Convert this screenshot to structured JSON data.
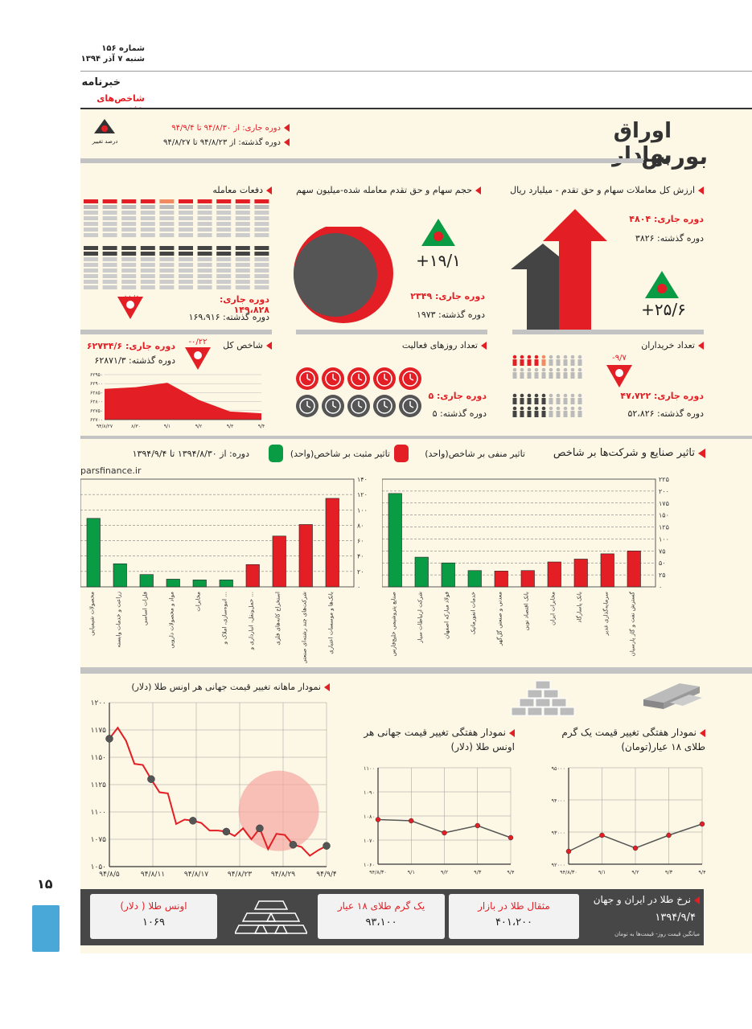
{
  "header": {
    "issue": "شماره ۱۵۶",
    "date": "شنبه ۷ آذر ۱۳۹۴",
    "section": "خبرنامه",
    "subsection": "شاخص‌های هفته"
  },
  "legend": {
    "current_period": "دوره جاری: از ۹۴/۸/۳۰ تا ۹۴/۹/۴",
    "previous_period": "دوره گذشته: از ۹۴/۸/۲۳ تا ۹۴/۸/۲۷",
    "percent_change": "درصد تغییر"
  },
  "main_title": {
    "word1": "اوراق بهادار",
    "word2": "بورس"
  },
  "value_traded": {
    "title": "ارزش کل معاملات سهام و حق تقدم - میلیارد ریال",
    "current": "دوره جاری: ۴۸۰۴",
    "previous": "دوره گذشته: ۳۸۲۶",
    "change": "+۲۵/۶"
  },
  "volume": {
    "title": "حجم سهام و حق تقدم معامله شده-میلیون سهم",
    "current": "دوره جاری: ۲۳۴۹",
    "previous": "دوره گذشته: ۱۹۷۳",
    "change": "+۱۹/۱"
  },
  "transactions": {
    "title": "دفعات معامله",
    "current": "دوره جاری: ۱۴۹،۸۲۸",
    "previous": "دوره گذشته: ۱۶۹،۹۱۶",
    "change": "-۱۱/۸"
  },
  "buyers": {
    "title": "تعداد خریداران",
    "current": "دوره جاری: ۴۷،۷۲۲",
    "previous": "دوره گذشته: ۵۲،۸۲۶",
    "change": "-۹/۷"
  },
  "active_days": {
    "title": "تعداد روزهای فعالیت",
    "current": "دوره جاری: ۵",
    "previous": "دوره گذشته: ۵"
  },
  "total_index": {
    "title": "شاخص کل",
    "current": "دوره جاری: ۶۲۷۳۴/۶",
    "previous": "دوره گذشته: ۶۲۸۷۱/۳",
    "change": "-۰/۲۲",
    "chart_data": {
      "type": "area",
      "x": [
        "۹۴/۸/۲۷",
        "۸/۳۰",
        "۹/۱",
        "۹/۲",
        "۹/۳",
        "۹/۴"
      ],
      "y_ticks": [
        "۶۲۷۰۰",
        "۶۲۷۵۰",
        "۶۲۸۰۰",
        "۶۲۸۵۰",
        "۶۲۹۰۰",
        "۶۲۹۵۰"
      ],
      "values": [
        62871,
        62880,
        62905,
        62810,
        62745,
        62735
      ],
      "ylim": [
        62700,
        62950
      ]
    }
  },
  "impact": {
    "title": "تاثیر صنایع و شرکت‌ها بر شاخص",
    "negative_label": "تاثیر منفی بر شاخص(واحد)",
    "positive_label": "تاثیر مثبت بر شاخص(واحد)",
    "period": "دوره: از ۱۳۹۴/۸/۳۰ تا ۱۳۹۴/۹/۴",
    "source": "parsfinance.ir",
    "colors": {
      "positive": "#0a9b45",
      "negative": "#e31e24"
    }
  },
  "chart_data": [
    {
      "type": "bar",
      "title": "صنایع",
      "categories": [
        "محصولات شیمیایی",
        "زراعت و خدمات وابسته",
        "فلزات اساسی",
        "مواد و محصولات دارویی",
        "مخابرات",
        "انبوه‌سازی، املاک و ...",
        "حمل‌ونقل، انبارداری و ...",
        "استخراج کانه‌های فلزی",
        "شرکت‌های چند رشته‌ای صنعتی",
        "بانک‌ها و موسسات اعتباری"
      ],
      "values": [
        89,
        30,
        16,
        10,
        9,
        9,
        29,
        66,
        81,
        115
      ],
      "signs": [
        "+",
        "+",
        "+",
        "+",
        "+",
        "+",
        "-",
        "-",
        "-",
        "-"
      ],
      "y_ticks": [
        "۰",
        "۲۰",
        "۴۰",
        "۶۰",
        "۸۰",
        "۱۰۰",
        "۱۲۰",
        "۱۴۰"
      ],
      "ylim": [
        0,
        140
      ]
    },
    {
      "type": "bar",
      "title": "شرکت‌ها",
      "categories": [
        "صنایع پتروشیمی خلیج‌فارس",
        "شرکت ارتباطات سیار",
        "فولاد مبارکه اصفهان",
        "خدمات انفورماتیک",
        "معدنی و صنعتی گل‌گهر",
        "بانک اقتصاد نوین",
        "مخابرات ایران",
        "بانک پاسارگاد",
        "سرمایه‌گذاری غدیر",
        "گسترش نفت و گاز پارسیان"
      ],
      "values": [
        195,
        62,
        50,
        34,
        33,
        34,
        52,
        58,
        69,
        75
      ],
      "signs": [
        "+",
        "+",
        "+",
        "+",
        "-",
        "-",
        "-",
        "-",
        "-",
        "-"
      ],
      "y_ticks": [
        "۰",
        "۲۵",
        "۵۰",
        "۷۵",
        "۱۰۰",
        "۱۲۵",
        "۱۵۰",
        "۱۷۵",
        "۲۰۰",
        "۲۲۵"
      ],
      "ylim": [
        0,
        225
      ]
    },
    {
      "type": "line",
      "title": "نمودار ماهانه تغییر قیمت جهانی هر اونس طلا (دلار)",
      "x_labels": [
        "۹۴/۸/۵",
        "۹۴/۸/۱۱",
        "۹۴/۸/۱۷",
        "۹۴/۸/۲۳",
        "۹۴/۸/۲۹",
        "۹۴/۹/۴"
      ],
      "y_ticks": [
        "۱۰۵۰",
        "۱۰۷۵",
        "۱۱۰۰",
        "۱۱۲۵",
        "۱۱۵۰",
        "۱۱۷۵",
        "۱۲۰۰"
      ],
      "values": [
        1167,
        1177,
        1165,
        1144,
        1143,
        1130,
        1118,
        1117,
        1089,
        1093,
        1092,
        1090,
        1083,
        1083,
        1082,
        1078,
        1085,
        1075,
        1085,
        1066,
        1080,
        1079,
        1070,
        1068,
        1060,
        1065,
        1069
      ],
      "markers": [
        0,
        5,
        10,
        14,
        18,
        22,
        26
      ],
      "ylim": [
        1050,
        1200
      ]
    },
    {
      "type": "line",
      "title": "نمودار هفتگی تغییر قیمت جهانی هر اونس طلا (دلار)",
      "x_labels": [
        "۹۴/۸/۳۰",
        "۹/۱",
        "۹/۲",
        "۹/۳",
        "۹/۴"
      ],
      "y_ticks": [
        "۱۰۶۰",
        "۱۰۷۰",
        "۱۰۸۰",
        "۱۰۹۰",
        "۱۱۰۰"
      ],
      "values": [
        1078.5,
        1078,
        1073,
        1076,
        1071
      ],
      "ylim": [
        1060,
        1100
      ]
    },
    {
      "type": "line",
      "title": "نمودار هفتگی تغییر قیمت یک گرم طلای ۱۸ عیار (تومان)",
      "x_labels": [
        "۹۴/۸/۳۰",
        "۹/۱",
        "۹/۲",
        "۹/۳",
        "۹/۴"
      ],
      "y_ticks": [
        "۹۲۰۰۰",
        "۹۳۰۰۰",
        "۹۴۰۰۰",
        "۹۵۰۰۰"
      ],
      "values": [
        92400,
        92900,
        92500,
        92900,
        93250
      ],
      "ylim": [
        92000,
        95000
      ]
    }
  ],
  "gold": {
    "monthly_title": "نمودار ماهانه تغییر قیمت جهانی هر اونس طلا (دلار)",
    "weekly_ounce_title_1": "نمودار هفتگی تغییر قیمت جهانی هر",
    "weekly_ounce_title_2": "اونس طلا (دلار)",
    "weekly_gram_title_1": "نمودار هفتگی تغییر قیمت یک گرم",
    "weekly_gram_title_2": "طلای ۱۸ عیار(تومان)"
  },
  "footer": {
    "title": "نرخ طلا در ایران و جهان",
    "date": "۱۳۹۴/۹/۴",
    "note": "میانگین قیمت روز- قیمت‌ها به تومان",
    "mesghal_label": "مثقال طلا در بازار",
    "mesghal_value": "۴۰۱،۲۰۰",
    "gram_label": "یک گرم طلای ۱۸ عیار",
    "gram_value": "۹۳،۱۰۰",
    "ounce_label": "اونس طلا ( دلار)",
    "ounce_value": "۱۰۶۹",
    "page_number": "۱۵"
  }
}
